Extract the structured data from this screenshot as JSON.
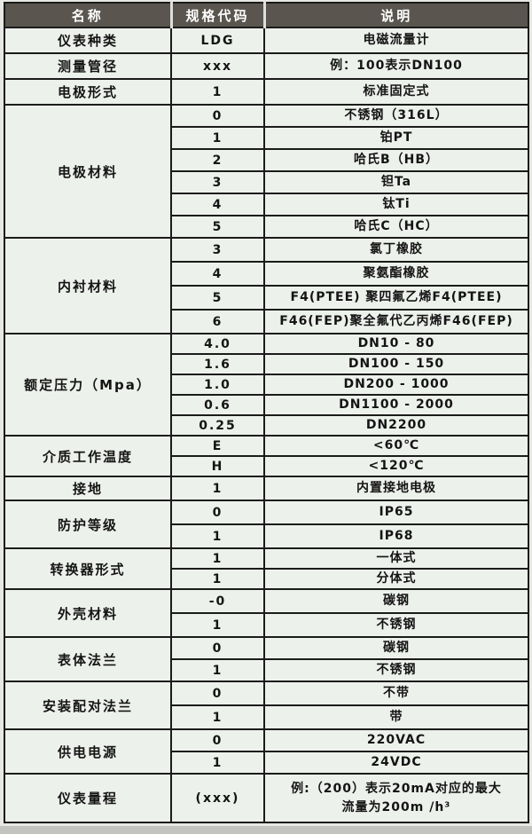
{
  "colors": {
    "page_background": "#e7e7e3",
    "header_background": "#5a564f",
    "header_text": "#fdfdfd",
    "header_separator": "#dededa",
    "cell_background": "#edf1ec",
    "border": "#1b1b1b",
    "bottom_strip": "#c3c3c0"
  },
  "table": {
    "header": {
      "columns": [
        "名称",
        "规格代码",
        "说明"
      ]
    },
    "groups": [
      {
        "name": "仪表种类",
        "rows": [
          {
            "code": "LDG",
            "desc": "电磁流量计"
          }
        ]
      },
      {
        "name": "测量管径",
        "rows": [
          {
            "code": "xxx",
            "desc": "例：100表示DN100"
          }
        ]
      },
      {
        "name": "电极形式",
        "rows": [
          {
            "code": "1",
            "desc": "标准固定式"
          }
        ]
      },
      {
        "name": "电极材料",
        "rows": [
          {
            "code": "0",
            "desc": "不锈钢（316L）"
          },
          {
            "code": "1",
            "desc": "铂PT"
          },
          {
            "code": "2",
            "desc": "哈氏B（HB）"
          },
          {
            "code": "3",
            "desc": "钽Ta"
          },
          {
            "code": "4",
            "desc": "钛Ti"
          },
          {
            "code": "5",
            "desc": "哈氏C（HC）"
          }
        ]
      },
      {
        "name": "内衬材料",
        "rows": [
          {
            "code": "3",
            "desc": "氯丁橡胶"
          },
          {
            "code": "4",
            "desc": "聚氨酯橡胶"
          },
          {
            "code": "5",
            "desc": "F4(PTEE) 聚四氟乙烯F4(PTEE)"
          },
          {
            "code": "6",
            "desc": "F46(FEP)聚全氟代乙丙烯F46(FEP)"
          }
        ]
      },
      {
        "name": "额定压力（Mpa）",
        "rows": [
          {
            "code": "4.0",
            "desc": "DN10 - 80"
          },
          {
            "code": "1.6",
            "desc": "DN100 - 150"
          },
          {
            "code": "1.0",
            "desc": "DN200 - 1000"
          },
          {
            "code": "0.6",
            "desc": "DN1100 - 2000"
          },
          {
            "code": "0.25",
            "desc": "DN2200"
          }
        ]
      },
      {
        "name": "介质工作温度",
        "rows": [
          {
            "code": "E",
            "desc": "<60℃"
          },
          {
            "code": "H",
            "desc": "<120℃"
          }
        ]
      },
      {
        "name": "接地",
        "rows": [
          {
            "code": "1",
            "desc": "内置接地电极"
          }
        ]
      },
      {
        "name": "防护等级",
        "rows": [
          {
            "code": "0",
            "desc": "IP65"
          },
          {
            "code": "1",
            "desc": "IP68"
          }
        ]
      },
      {
        "name": "转换器形式",
        "rows": [
          {
            "code": "1",
            "desc": "一体式"
          },
          {
            "code": "1",
            "desc": "分体式"
          }
        ]
      },
      {
        "name": "外壳材料",
        "rows": [
          {
            "code": "-0",
            "desc": "碳钢"
          },
          {
            "code": "1",
            "desc": "不锈钢"
          }
        ]
      },
      {
        "name": "表体法兰",
        "rows": [
          {
            "code": "0",
            "desc": "碳钢"
          },
          {
            "code": "1",
            "desc": "不锈钢"
          }
        ]
      },
      {
        "name": "安装配对法兰",
        "rows": [
          {
            "code": "0",
            "desc": "不带"
          },
          {
            "code": "1",
            "desc": "带"
          }
        ]
      },
      {
        "name": "供电电源",
        "rows": [
          {
            "code": "0",
            "desc": "220VAC"
          },
          {
            "code": "1",
            "desc": "24VDC"
          }
        ]
      },
      {
        "name": "仪表量程",
        "rows": [
          {
            "code": "(xxx)",
            "desc_lines": [
              "例:（200）表示20mA对应的最大",
              "流量为200m /h³"
            ]
          }
        ]
      }
    ]
  }
}
